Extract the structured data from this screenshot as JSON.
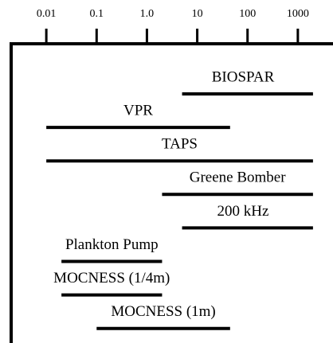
{
  "chart_data": {
    "type": "range",
    "categories": [
      "BIOSPAR",
      "VPR",
      "TAPS",
      "Greene Bomber",
      "200 kHz",
      "Plankton Pump",
      "MOCNESS (1/4m)",
      "MOCNESS (1m)"
    ],
    "values": [
      [
        5,
        2000
      ],
      [
        0.01,
        45
      ],
      [
        0.01,
        2000
      ],
      [
        2,
        2000
      ],
      [
        5,
        2000
      ],
      [
        0.02,
        2
      ],
      [
        0.02,
        2
      ],
      [
        0.1,
        45
      ]
    ],
    "color": "#000000",
    "xlim": [
      0.002,
      5000
    ],
    "log_x": true,
    "xticks": [
      0.01,
      0.1,
      {
        "value": 1,
        "label": "1.0"
      },
      10,
      100,
      1000
    ]
  }
}
